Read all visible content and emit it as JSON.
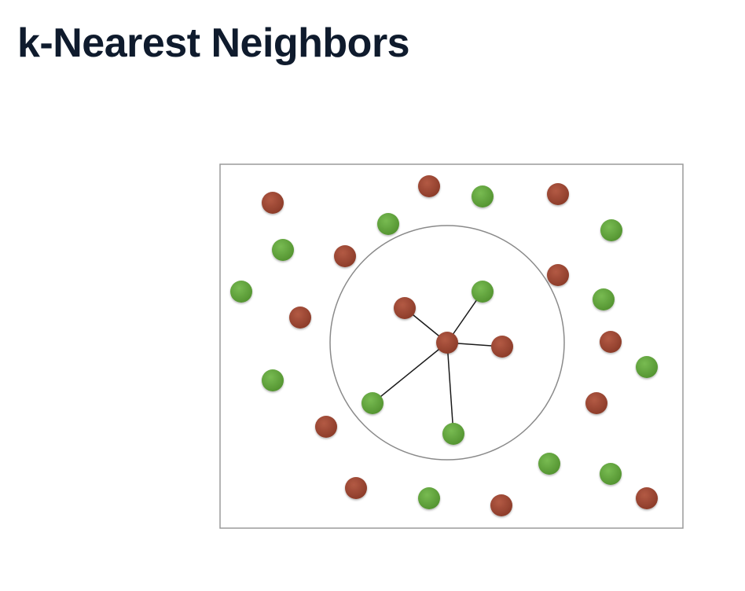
{
  "header": {
    "title": "k-Nearest Neighbors"
  },
  "colors": {
    "class_red": "#96432f",
    "class_green": "#5fa23c",
    "frame": "#9a9a9a",
    "neighborhood_circle": "#8a8a8a",
    "edges": "#1a1a1a",
    "title": "#0f1b2d"
  },
  "diagram": {
    "description_type": "knn-illustration",
    "classes": [
      "red",
      "green"
    ],
    "k": 5,
    "query_point_class": "red",
    "neighbor_classes": [
      "red",
      "green",
      "red",
      "green",
      "green"
    ]
  }
}
